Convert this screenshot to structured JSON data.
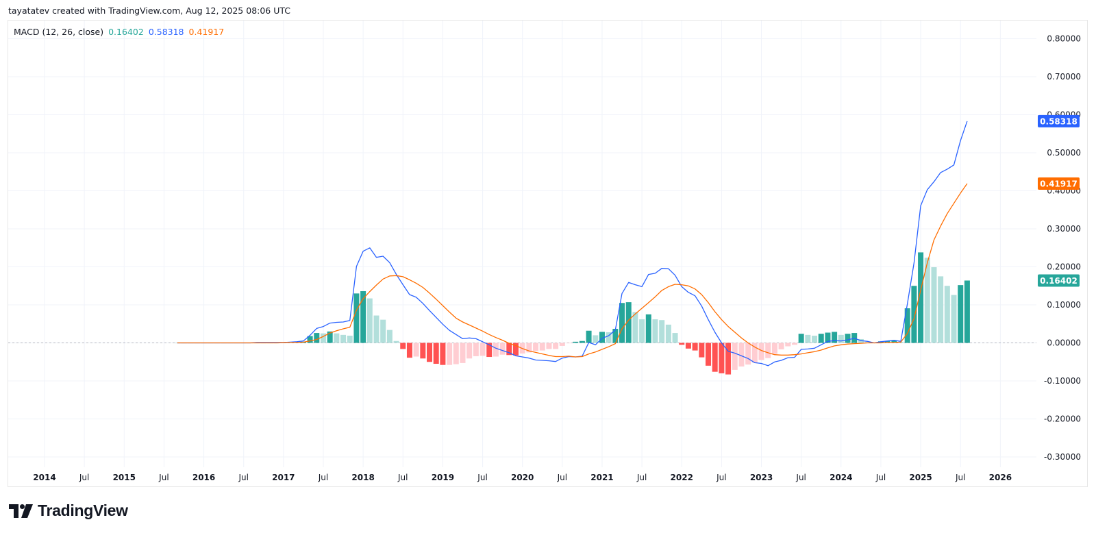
{
  "header": {
    "attribution": "tayatatev created with TradingView.com, Aug 12, 2025 08:06 UTC"
  },
  "legend": {
    "indicator": "MACD (12, 26, close)",
    "histogram_value": "0.16402",
    "macd_value": "0.58318",
    "signal_value": "0.41917"
  },
  "colors": {
    "macd": "#2962ff",
    "signal": "#ff6d00",
    "hist_pos_rising": "#26a69a",
    "hist_pos_falling": "#b2dfdb",
    "hist_neg_rising": "#ffcdd2",
    "hist_neg_falling": "#ff5252"
  },
  "badges": {
    "macd": "0.58318",
    "signal": "0.41917",
    "histogram": "0.16402"
  },
  "logo": {
    "text": "TradingView"
  },
  "chart_data": {
    "type": "line+bar",
    "title": "",
    "ylim": [
      -0.327,
      0.848
    ],
    "grid": true,
    "zero_line": "dashed",
    "yticks": [
      {
        "v": 0.8,
        "label": "0.80000"
      },
      {
        "v": 0.7,
        "label": "0.70000"
      },
      {
        "v": 0.6,
        "label": "0.60000"
      },
      {
        "v": 0.5,
        "label": "0.50000"
      },
      {
        "v": 0.4,
        "label": "0.40000"
      },
      {
        "v": 0.3,
        "label": "0.30000"
      },
      {
        "v": 0.2,
        "label": "0.20000"
      },
      {
        "v": 0.1,
        "label": "0.10000"
      },
      {
        "v": 0.0,
        "label": "0.00000"
      },
      {
        "v": -0.1,
        "label": "-0.10000"
      },
      {
        "v": -0.2,
        "label": "-0.20000"
      },
      {
        "v": -0.3,
        "label": "-0.30000"
      }
    ],
    "xticks": [
      {
        "date": "2014-01",
        "label": "2014",
        "major": true
      },
      {
        "date": "2014-07",
        "label": "Jul",
        "major": false
      },
      {
        "date": "2015-01",
        "label": "2015",
        "major": true
      },
      {
        "date": "2015-07",
        "label": "Jul",
        "major": false
      },
      {
        "date": "2016-01",
        "label": "2016",
        "major": true
      },
      {
        "date": "2016-07",
        "label": "Jul",
        "major": false
      },
      {
        "date": "2017-01",
        "label": "2017",
        "major": true
      },
      {
        "date": "2017-07",
        "label": "Jul",
        "major": false
      },
      {
        "date": "2018-01",
        "label": "2018",
        "major": true
      },
      {
        "date": "2018-07",
        "label": "Jul",
        "major": false
      },
      {
        "date": "2019-01",
        "label": "2019",
        "major": true
      },
      {
        "date": "2019-07",
        "label": "Jul",
        "major": false
      },
      {
        "date": "2020-01",
        "label": "2020",
        "major": true
      },
      {
        "date": "2020-07",
        "label": "Jul",
        "major": false
      },
      {
        "date": "2021-01",
        "label": "2021",
        "major": true
      },
      {
        "date": "2021-07",
        "label": "Jul",
        "major": false
      },
      {
        "date": "2022-01",
        "label": "2022",
        "major": true
      },
      {
        "date": "2022-07",
        "label": "Jul",
        "major": false
      },
      {
        "date": "2023-01",
        "label": "2023",
        "major": true
      },
      {
        "date": "2023-07",
        "label": "Jul",
        "major": false
      },
      {
        "date": "2024-01",
        "label": "2024",
        "major": true
      },
      {
        "date": "2024-07",
        "label": "Jul",
        "major": false
      },
      {
        "date": "2025-01",
        "label": "2025",
        "major": true
      },
      {
        "date": "2025-07",
        "label": "Jul",
        "major": false
      },
      {
        "date": "2026-01",
        "label": "2026",
        "major": true
      }
    ],
    "dates": [
      "2015-09",
      "2015-10",
      "2015-11",
      "2015-12",
      "2016-01",
      "2016-02",
      "2016-03",
      "2016-04",
      "2016-05",
      "2016-06",
      "2016-07",
      "2016-08",
      "2016-09",
      "2016-10",
      "2016-11",
      "2016-12",
      "2017-01",
      "2017-02",
      "2017-03",
      "2017-04",
      "2017-05",
      "2017-06",
      "2017-07",
      "2017-08",
      "2017-09",
      "2017-10",
      "2017-11",
      "2017-12",
      "2018-01",
      "2018-02",
      "2018-03",
      "2018-04",
      "2018-05",
      "2018-06",
      "2018-07",
      "2018-08",
      "2018-09",
      "2018-10",
      "2018-11",
      "2018-12",
      "2019-01",
      "2019-02",
      "2019-03",
      "2019-04",
      "2019-05",
      "2019-06",
      "2019-07",
      "2019-08",
      "2019-09",
      "2019-10",
      "2019-11",
      "2019-12",
      "2020-01",
      "2020-02",
      "2020-03",
      "2020-04",
      "2020-05",
      "2020-06",
      "2020-07",
      "2020-08",
      "2020-09",
      "2020-10",
      "2020-11",
      "2020-12",
      "2021-01",
      "2021-02",
      "2021-03",
      "2021-04",
      "2021-05",
      "2021-06",
      "2021-07",
      "2021-08",
      "2021-09",
      "2021-10",
      "2021-11",
      "2021-12",
      "2022-01",
      "2022-02",
      "2022-03",
      "2022-04",
      "2022-05",
      "2022-06",
      "2022-07",
      "2022-08",
      "2022-09",
      "2022-10",
      "2022-11",
      "2022-12",
      "2023-01",
      "2023-02",
      "2023-03",
      "2023-04",
      "2023-05",
      "2023-06",
      "2023-07",
      "2023-08",
      "2023-09",
      "2023-10",
      "2023-11",
      "2023-12",
      "2024-01",
      "2024-02",
      "2024-03",
      "2024-04",
      "2024-05",
      "2024-06",
      "2024-07",
      "2024-08",
      "2024-09",
      "2024-10",
      "2024-11",
      "2024-12",
      "2025-01",
      "2025-02",
      "2025-03",
      "2025-04",
      "2025-05",
      "2025-06",
      "2025-07",
      "2025-08"
    ],
    "series": [
      {
        "name": "MACD",
        "kind": "line",
        "values": [
          0,
          0,
          0,
          0,
          0,
          0,
          0,
          0,
          0,
          0,
          0,
          0,
          0.001,
          0.001,
          0.001,
          0.001,
          0.001,
          0.002,
          0.003,
          0.005,
          0.02,
          0.038,
          0.043,
          0.052,
          0.054,
          0.055,
          0.059,
          0.201,
          0.241,
          0.25,
          0.225,
          0.228,
          0.211,
          0.18,
          0.153,
          0.127,
          0.12,
          0.104,
          0.085,
          0.067,
          0.049,
          0.033,
          0.022,
          0.011,
          0.013,
          0.011,
          0.003,
          -0.005,
          -0.014,
          -0.02,
          -0.026,
          -0.034,
          -0.037,
          -0.04,
          -0.045,
          -0.046,
          -0.047,
          -0.049,
          -0.04,
          -0.036,
          -0.037,
          -0.035,
          0.001,
          -0.005,
          0.012,
          0.019,
          0.034,
          0.13,
          0.159,
          0.153,
          0.148,
          0.18,
          0.183,
          0.196,
          0.195,
          0.178,
          0.148,
          0.133,
          0.124,
          0.097,
          0.061,
          0.028,
          0.0,
          -0.022,
          -0.027,
          -0.034,
          -0.041,
          -0.052,
          -0.054,
          -0.06,
          -0.05,
          -0.046,
          -0.039,
          -0.038,
          -0.017,
          -0.016,
          -0.014,
          -0.005,
          0.004,
          0.006,
          0.005,
          0.008,
          0.012,
          0.006,
          0.004,
          0.0,
          0.003,
          0.005,
          0.007,
          0.004,
          0.103,
          0.211,
          0.361,
          0.403,
          0.424,
          0.448,
          0.457,
          0.468,
          0.532,
          0.583
        ]
      },
      {
        "name": "Signal",
        "kind": "line",
        "values": [
          0,
          0,
          0,
          0,
          0,
          0,
          0,
          0,
          0,
          0,
          0,
          0,
          0,
          0,
          0,
          0,
          0.0005,
          0.001,
          0.001,
          0.002,
          0.005,
          0.009,
          0.017,
          0.026,
          0.032,
          0.037,
          0.041,
          0.086,
          0.116,
          0.135,
          0.152,
          0.168,
          0.176,
          0.177,
          0.174,
          0.166,
          0.157,
          0.146,
          0.131,
          0.115,
          0.098,
          0.081,
          0.065,
          0.055,
          0.047,
          0.039,
          0.031,
          0.022,
          0.014,
          0.007,
          -0.001,
          -0.007,
          -0.015,
          -0.021,
          -0.025,
          -0.029,
          -0.033,
          -0.036,
          -0.036,
          -0.035,
          -0.037,
          -0.036,
          -0.029,
          -0.024,
          -0.017,
          -0.01,
          -0.002,
          0.037,
          0.06,
          0.076,
          0.091,
          0.106,
          0.121,
          0.138,
          0.148,
          0.154,
          0.153,
          0.15,
          0.142,
          0.127,
          0.106,
          0.082,
          0.061,
          0.043,
          0.028,
          0.013,
          0.0,
          -0.011,
          -0.02,
          -0.026,
          -0.031,
          -0.032,
          -0.032,
          -0.031,
          -0.029,
          -0.026,
          -0.023,
          -0.019,
          -0.013,
          -0.008,
          -0.005,
          -0.003,
          -0.002,
          -0.001,
          0.0,
          0.0,
          0.0,
          0.001,
          0.001,
          0.002,
          0.025,
          0.064,
          0.139,
          0.211,
          0.271,
          0.307,
          0.34,
          0.367,
          0.394,
          0.419
        ]
      },
      {
        "name": "Histogram",
        "kind": "bar",
        "values": [
          0,
          0,
          0,
          0,
          0,
          0,
          0,
          0,
          0,
          0,
          0,
          0,
          0,
          0,
          0,
          0,
          0.001,
          0.001,
          0.002,
          0.003,
          0.018,
          0.026,
          0.025,
          0.03,
          0.025,
          0.021,
          0.019,
          0.13,
          0.136,
          0.117,
          0.072,
          0.061,
          0.034,
          0.005,
          -0.016,
          -0.039,
          -0.036,
          -0.041,
          -0.05,
          -0.055,
          -0.058,
          -0.058,
          -0.056,
          -0.053,
          -0.041,
          -0.035,
          -0.034,
          -0.037,
          -0.036,
          -0.031,
          -0.032,
          -0.033,
          -0.028,
          -0.025,
          -0.021,
          -0.02,
          -0.016,
          -0.016,
          -0.008,
          -0.001,
          0.003,
          0.005,
          0.032,
          0.02,
          0.029,
          0.028,
          0.037,
          0.105,
          0.107,
          0.081,
          0.062,
          0.075,
          0.062,
          0.06,
          0.048,
          0.026,
          -0.005,
          -0.015,
          -0.02,
          -0.038,
          -0.06,
          -0.076,
          -0.08,
          -0.083,
          -0.071,
          -0.062,
          -0.057,
          -0.052,
          -0.045,
          -0.04,
          -0.029,
          -0.017,
          -0.009,
          -0.005,
          0.024,
          0.021,
          0.019,
          0.024,
          0.027,
          0.029,
          0.021,
          0.024,
          0.026,
          0.01,
          0.002,
          0.001,
          0.004,
          0.005,
          0.006,
          0.003,
          0.091,
          0.15,
          0.238,
          0.224,
          0.199,
          0.175,
          0.15,
          0.126,
          0.152,
          0.164
        ]
      }
    ]
  }
}
